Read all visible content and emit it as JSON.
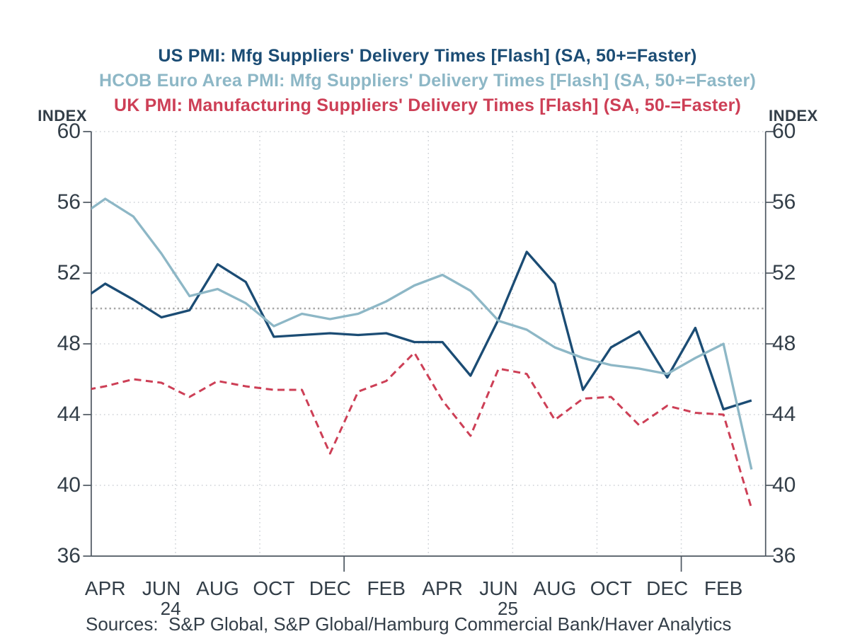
{
  "titles": [
    {
      "text": "US PMI: Mfg Suppliers' Delivery Times [Flash] (SA, 50+=Faster)",
      "color": "#1b4c74"
    },
    {
      "text": "HCOB Euro Area PMI: Mfg Suppliers' Delivery Times [Flash] (SA, 50+=Faster)",
      "color": "#8db7c6"
    },
    {
      "text": "UK PMI: Manufacturing Suppliers' Delivery Times [Flash] (SA, 50-=Faster)",
      "color": "#cd3f56"
    }
  ],
  "axis": {
    "left_header": "INDEX",
    "right_header": "INDEX",
    "y_ticks": [
      60,
      56,
      52,
      48,
      44,
      40,
      36
    ],
    "x_labels": [
      "APR",
      "JUN",
      "AUG",
      "OCT",
      "DEC",
      "FEB",
      "APR",
      "JUN",
      "AUG",
      "OCT",
      "DEC",
      "FEB"
    ],
    "year_labels": [
      {
        "text": "24",
        "under_month_label_index": 1
      },
      {
        "text": "25",
        "under_month_label_index": 7
      }
    ]
  },
  "source_note": "Sources:  S&P Global, S&P Global/Hamburg Commercial Bank/Haver Analytics",
  "colors": {
    "us_line": "#1b4c74",
    "euro_line": "#8db7c6",
    "uk_line": "#cd3f56",
    "reference_line": "#a6a6a6",
    "gridline": "#cdd1d6",
    "axis_spine": "#4d5761",
    "tick_text": "#333e48"
  },
  "chart_data": {
    "type": "line",
    "title": "US PMI: Mfg Suppliers' Delivery Times [Flash] (SA, 50+=Faster)",
    "subtitle_2": "HCOB Euro Area PMI: Mfg Suppliers' Delivery Times [Flash] (SA, 50+=Faster)",
    "subtitle_3": "UK PMI: Manufacturing Suppliers' Delivery Times [Flash] (SA, 50-=Faster)",
    "ylabel": "INDEX",
    "ylim": [
      36,
      60
    ],
    "y_tick_step": 4,
    "reference_line_y": 50,
    "grid": "dotted, horizontal at each y tick and vertical at quarter boundaries",
    "legend_position": "titles act as legend (color-coded)",
    "x": [
      "2024-03",
      "2024-04",
      "2024-05",
      "2024-06",
      "2024-07",
      "2024-08",
      "2024-09",
      "2024-10",
      "2024-11",
      "2024-12",
      "2025-01",
      "2025-02",
      "2025-03",
      "2025-04",
      "2025-05",
      "2025-06",
      "2025-07",
      "2025-08",
      "2025-09",
      "2025-10",
      "2025-11",
      "2025-12",
      "2026-01",
      "2026-02",
      "2026-03"
    ],
    "series": [
      {
        "name": "US PMI: Mfg Suppliers' Delivery Times [Flash]",
        "color": "#1b4c74",
        "style": "solid",
        "values": [
          50.3,
          51.4,
          50.5,
          49.5,
          49.9,
          52.5,
          51.5,
          48.4,
          48.5,
          48.6,
          48.5,
          48.6,
          48.1,
          48.1,
          46.2,
          49.4,
          53.2,
          51.4,
          45.4,
          47.8,
          48.7,
          46.1,
          48.9,
          44.3,
          44.8
        ]
      },
      {
        "name": "HCOB Euro Area PMI: Mfg Suppliers' Delivery Times [Flash]",
        "color": "#8db7c6",
        "style": "solid",
        "values": [
          55.1,
          56.2,
          55.2,
          53.1,
          50.7,
          51.1,
          50.3,
          49.0,
          49.7,
          49.4,
          49.7,
          50.4,
          51.3,
          51.9,
          51.0,
          49.3,
          48.8,
          47.8,
          47.2,
          46.8,
          46.6,
          46.3,
          47.2,
          48.0,
          40.9
        ]
      },
      {
        "name": "UK PMI: Manufacturing Suppliers' Delivery Times [Flash]",
        "color": "#cd3f56",
        "style": "dashed",
        "values": [
          45.3,
          45.6,
          46.0,
          45.8,
          45.0,
          45.9,
          45.6,
          45.4,
          45.4,
          41.8,
          45.3,
          45.9,
          47.5,
          44.8,
          42.8,
          46.6,
          46.3,
          43.7,
          44.9,
          45.0,
          43.4,
          44.5,
          44.1,
          44.0,
          38.7
        ]
      }
    ]
  }
}
